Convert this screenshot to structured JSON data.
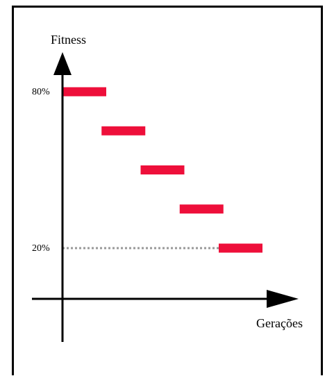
{
  "chart_data": {
    "type": "bar",
    "title": "",
    "ylabel": "Fitness",
    "xlabel": "Gerações",
    "yticks": [
      {
        "value": 80,
        "label": "80%"
      },
      {
        "value": 20,
        "label": "20%"
      }
    ],
    "ylim": [
      20,
      80
    ],
    "bars": [
      {
        "x_start": 1,
        "x_end": 2,
        "y": 80
      },
      {
        "x_start": 2,
        "x_end": 3,
        "y": 65
      },
      {
        "x_start": 3,
        "x_end": 4,
        "y": 50
      },
      {
        "x_start": 4,
        "x_end": 5,
        "y": 35
      },
      {
        "x_start": 5,
        "x_end": 6,
        "y": 20
      }
    ],
    "reference_line": {
      "y": 20,
      "style": "dotted",
      "color": "#999999"
    },
    "grid": false,
    "legend": "none"
  },
  "colors": {
    "bar": "#ee0f3a",
    "axis": "#000000",
    "frame": "#000000"
  }
}
